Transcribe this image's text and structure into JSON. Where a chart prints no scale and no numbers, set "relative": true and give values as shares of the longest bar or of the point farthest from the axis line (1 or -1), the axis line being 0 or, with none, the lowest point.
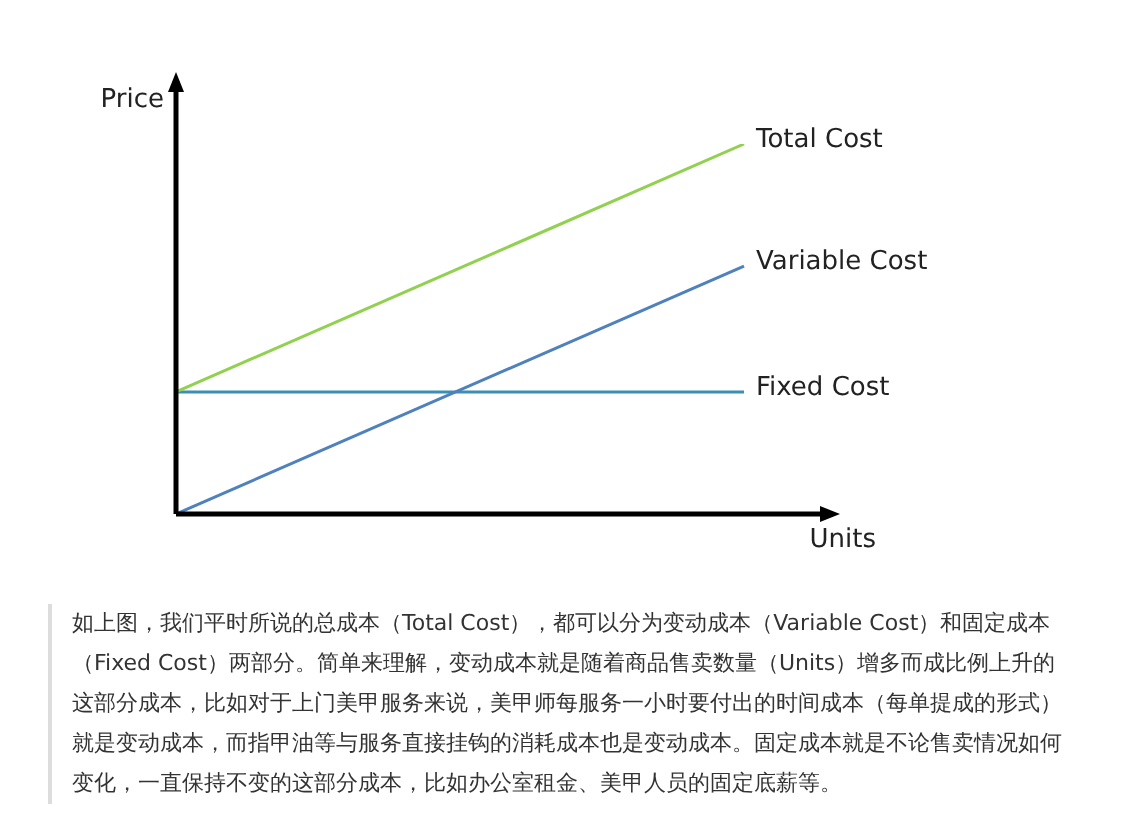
{
  "chart_data": {
    "type": "line",
    "relative": true,
    "xlabel": "Units",
    "ylabel": "Price",
    "categories": [
      null,
      null
    ],
    "series": [
      {
        "name": "Total Cost",
        "color": "#92d050",
        "values": [
          0.33,
          1
        ]
      },
      {
        "name": "Variable Cost",
        "color": "#4f81bd",
        "values": [
          0,
          0.67
        ]
      },
      {
        "name": "Fixed Cost",
        "color": "#3b8fb4",
        "values": [
          0.33,
          0.33
        ]
      }
    ],
    "annotations": [
      "如上图，我们平时所说的总成本（Total Cost），都可以分为变动成本（Variable Cost）和固定成本（Fixed Cost）两部分。简单来理解，变动成本就是随着商品售卖数量（Units）增多而成比例上升的这部分成本，比如对于上门美甲服务来说，美甲师每服务一小时要付出的时间成本（每单提成的形式）就是变动成本，而指甲油等与服务直接挂钩的消耗成本也是变动成本。固定成本就是不论售卖情况如何变化，一直保持不变的这部分成本，比如办公室租金、美甲人员的固定底薪等。"
    ]
  }
}
